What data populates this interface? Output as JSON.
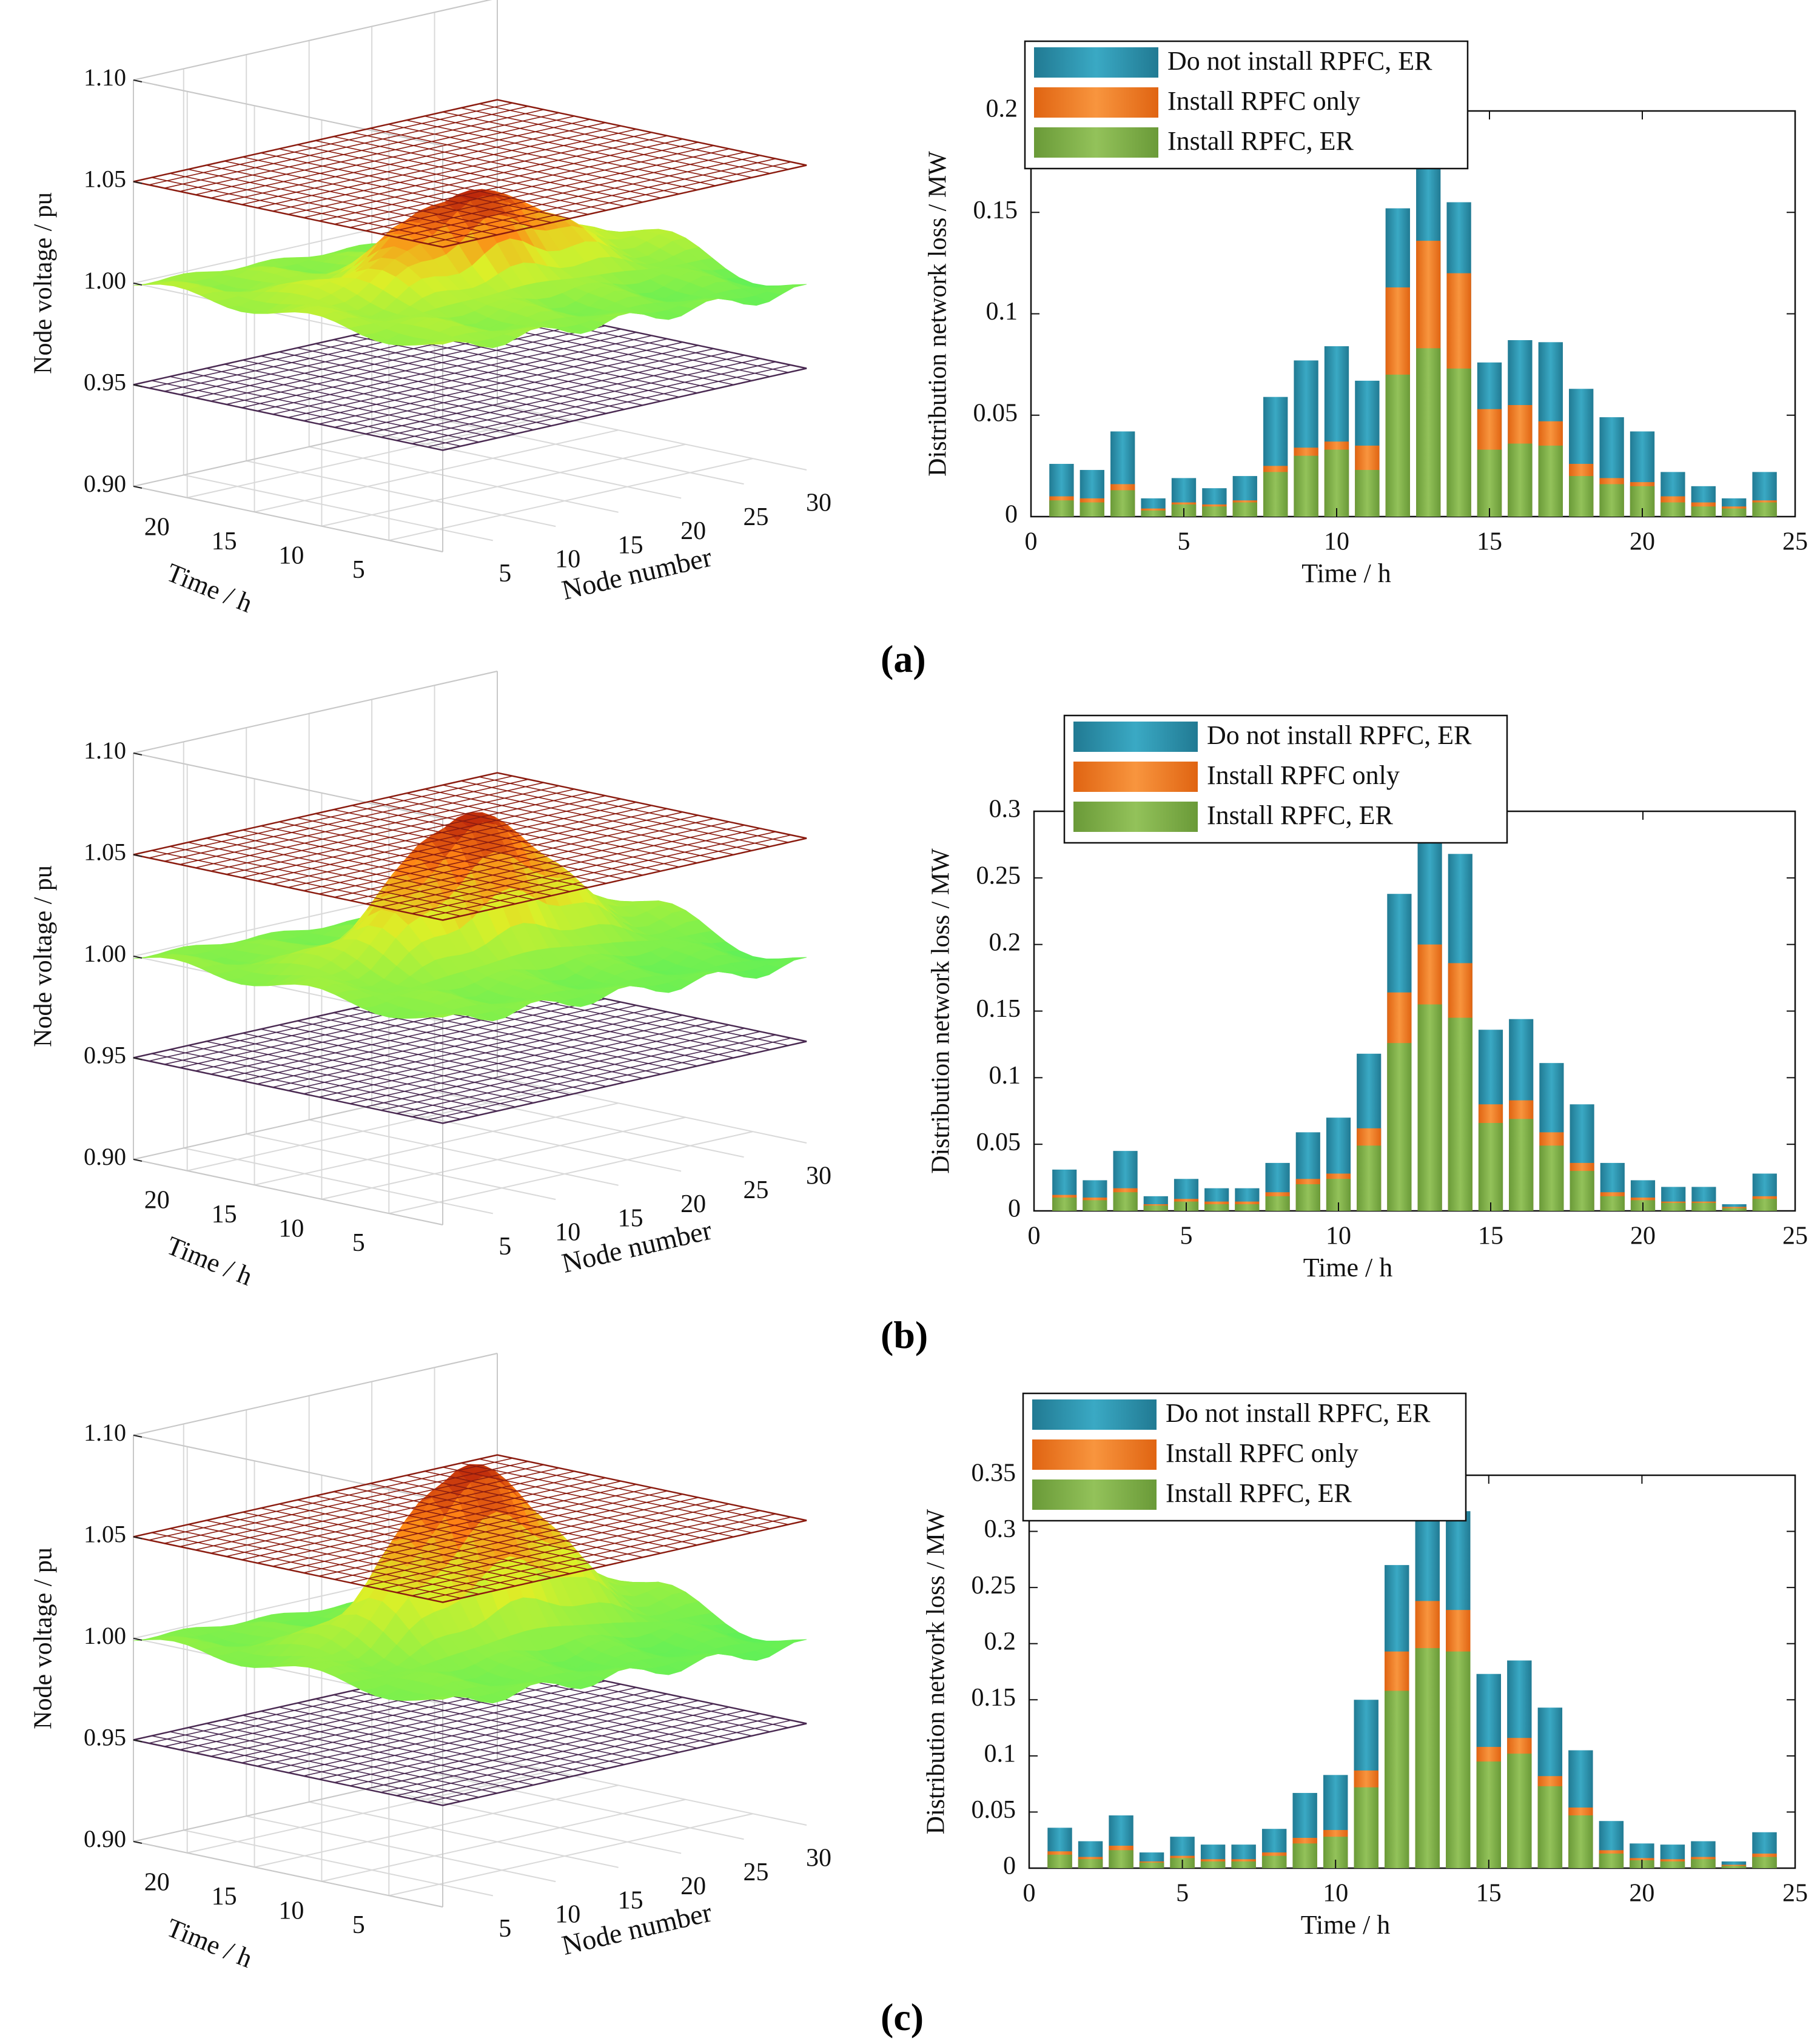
{
  "figure": {
    "panel_labels": [
      "(a)",
      "(b)",
      "(c)"
    ]
  },
  "colors": {
    "series": [
      "#2f97b2",
      "#f07c28",
      "#7fae45"
    ],
    "upper_plane": "#8b1c10",
    "lower_plane": "#4a2a52"
  },
  "chart_data": [
    {
      "panel": "(a)",
      "type": "surface",
      "zlabel": "Node voltage / pu",
      "ylabel": "Time / h",
      "xlabel": "Node number",
      "zlim": [
        0.9,
        1.1
      ],
      "zticks": [
        "1.10",
        "1.05",
        "1.00",
        "0.95",
        "0.90"
      ],
      "time_ticks": [
        "20",
        "15",
        "10",
        "5"
      ],
      "node_ticks": [
        "5",
        "10",
        "15",
        "20",
        "25",
        "30"
      ],
      "limit_planes": [
        1.05,
        0.95
      ],
      "peak_voltage": 1.04
    },
    {
      "panel": "(a)",
      "type": "bar",
      "ylabel": "Distribution network loss / MW",
      "xlabel": "Time / h",
      "ylim": [
        0,
        0.2
      ],
      "xlim": [
        0,
        25
      ],
      "yticks": [
        "0",
        "0.05",
        "0.1",
        "0.15",
        "0.2"
      ],
      "xticks": [
        "0",
        "5",
        "10",
        "15",
        "20",
        "25"
      ],
      "legend": [
        "Do not install RPFC, ER",
        "Install RPFC only",
        "Install RPFC, ER"
      ],
      "categories": [
        1,
        2,
        3,
        4,
        5,
        6,
        7,
        8,
        9,
        10,
        11,
        12,
        13,
        14,
        15,
        16,
        17,
        18,
        19,
        20,
        21,
        22,
        23,
        24
      ],
      "series": [
        {
          "name": "Do not install RPFC, ER",
          "values": [
            0.026,
            0.023,
            0.042,
            0.009,
            0.019,
            0.014,
            0.02,
            0.059,
            0.077,
            0.084,
            0.067,
            0.152,
            0.175,
            0.155,
            0.076,
            0.087,
            0.086,
            0.063,
            0.049,
            0.042,
            0.022,
            0.015,
            0.009,
            0.022
          ]
        },
        {
          "name": "Install RPFC only",
          "values": [
            0.01,
            0.009,
            0.016,
            0.004,
            0.007,
            0.006,
            0.008,
            0.025,
            0.034,
            0.037,
            0.035,
            0.113,
            0.136,
            0.12,
            0.053,
            0.055,
            0.047,
            0.026,
            0.019,
            0.017,
            0.01,
            0.007,
            0.005,
            0.008
          ]
        },
        {
          "name": "Install RPFC, ER",
          "values": [
            0.008,
            0.007,
            0.013,
            0.003,
            0.006,
            0.005,
            0.007,
            0.022,
            0.03,
            0.033,
            0.023,
            0.07,
            0.083,
            0.073,
            0.033,
            0.036,
            0.035,
            0.02,
            0.016,
            0.015,
            0.007,
            0.005,
            0.004,
            0.007
          ]
        }
      ]
    },
    {
      "panel": "(b)",
      "type": "surface",
      "zlabel": "Node voltage / pu",
      "ylabel": "Time / h",
      "xlabel": "Node number",
      "zlim": [
        0.9,
        1.1
      ],
      "zticks": [
        "1.10",
        "1.05",
        "1.00",
        "0.95",
        "0.90"
      ],
      "time_ticks": [
        "20",
        "15",
        "10",
        "5"
      ],
      "node_ticks": [
        "5",
        "10",
        "15",
        "20",
        "25",
        "30"
      ],
      "limit_planes": [
        1.05,
        0.95
      ],
      "peak_voltage": 1.065
    },
    {
      "panel": "(b)",
      "type": "bar",
      "ylabel": "Distribution network loss / MW",
      "xlabel": "Time / h",
      "ylim": [
        0,
        0.3
      ],
      "xlim": [
        0,
        25
      ],
      "yticks": [
        "0",
        "0.05",
        "0.1",
        "0.15",
        "0.2",
        "0.25",
        "0.3"
      ],
      "xticks": [
        "0",
        "5",
        "10",
        "15",
        "20",
        "25"
      ],
      "legend": [
        "Do not install RPFC, ER",
        "Install RPFC only",
        "Install RPFC, ER"
      ],
      "categories": [
        1,
        2,
        3,
        4,
        5,
        6,
        7,
        8,
        9,
        10,
        11,
        12,
        13,
        14,
        15,
        16,
        17,
        18,
        19,
        20,
        21,
        22,
        23,
        24
      ],
      "series": [
        {
          "name": "Do not install RPFC, ER",
          "values": [
            0.031,
            0.023,
            0.045,
            0.011,
            0.024,
            0.017,
            0.017,
            0.036,
            0.059,
            0.07,
            0.118,
            0.238,
            0.28,
            0.268,
            0.136,
            0.144,
            0.111,
            0.08,
            0.036,
            0.023,
            0.018,
            0.018,
            0.005,
            0.028
          ]
        },
        {
          "name": "Install RPFC only",
          "values": [
            0.012,
            0.01,
            0.017,
            0.005,
            0.009,
            0.007,
            0.007,
            0.014,
            0.024,
            0.028,
            0.062,
            0.164,
            0.2,
            0.186,
            0.08,
            0.083,
            0.059,
            0.036,
            0.014,
            0.01,
            0.007,
            0.007,
            0.003,
            0.011
          ]
        },
        {
          "name": "Install RPFC, ER",
          "values": [
            0.01,
            0.008,
            0.014,
            0.004,
            0.007,
            0.005,
            0.005,
            0.011,
            0.02,
            0.024,
            0.049,
            0.126,
            0.155,
            0.145,
            0.066,
            0.069,
            0.049,
            0.03,
            0.011,
            0.008,
            0.006,
            0.006,
            0.002,
            0.009
          ]
        }
      ]
    },
    {
      "panel": "(c)",
      "type": "surface",
      "zlabel": "Node voltage / pu",
      "ylabel": "Time / h",
      "xlabel": "Node number",
      "zlim": [
        0.9,
        1.1
      ],
      "zticks": [
        "1.10",
        "1.05",
        "1.00",
        "0.95",
        "0.90"
      ],
      "time_ticks": [
        "20",
        "15",
        "10",
        "5"
      ],
      "node_ticks": [
        "5",
        "10",
        "15",
        "20",
        "25",
        "30"
      ],
      "limit_planes": [
        1.05,
        0.95
      ],
      "peak_voltage": 1.08
    },
    {
      "panel": "(c)",
      "type": "bar",
      "ylabel": "Distribution network loss / MW",
      "xlabel": "Time / h",
      "ylim": [
        0,
        0.35
      ],
      "xlim": [
        0,
        25
      ],
      "yticks": [
        "0",
        "0.05",
        "0.1",
        "0.15",
        "0.2",
        "0.25",
        "0.3",
        "0.35"
      ],
      "xticks": [
        "0",
        "5",
        "10",
        "15",
        "20",
        "25"
      ],
      "legend": [
        "Do not install RPFC, ER",
        "Install RPFC only",
        "Install RPFC, ER"
      ],
      "categories": [
        1,
        2,
        3,
        4,
        5,
        6,
        7,
        8,
        9,
        10,
        11,
        12,
        13,
        14,
        15,
        16,
        17,
        18,
        19,
        20,
        21,
        22,
        23,
        24
      ],
      "series": [
        {
          "name": "Do not install RPFC, ER",
          "values": [
            0.036,
            0.024,
            0.047,
            0.014,
            0.028,
            0.021,
            0.021,
            0.035,
            0.067,
            0.083,
            0.15,
            0.27,
            0.322,
            0.318,
            0.173,
            0.185,
            0.143,
            0.105,
            0.042,
            0.022,
            0.021,
            0.024,
            0.006,
            0.032
          ]
        },
        {
          "name": "Install RPFC only",
          "values": [
            0.015,
            0.01,
            0.02,
            0.006,
            0.011,
            0.008,
            0.008,
            0.014,
            0.027,
            0.034,
            0.087,
            0.193,
            0.238,
            0.23,
            0.108,
            0.116,
            0.082,
            0.054,
            0.016,
            0.009,
            0.008,
            0.01,
            0.003,
            0.013
          ]
        },
        {
          "name": "Install RPFC, ER",
          "values": [
            0.012,
            0.008,
            0.016,
            0.005,
            0.009,
            0.006,
            0.006,
            0.011,
            0.022,
            0.028,
            0.072,
            0.158,
            0.196,
            0.193,
            0.095,
            0.102,
            0.073,
            0.047,
            0.013,
            0.007,
            0.006,
            0.008,
            0.002,
            0.01
          ]
        }
      ]
    }
  ]
}
